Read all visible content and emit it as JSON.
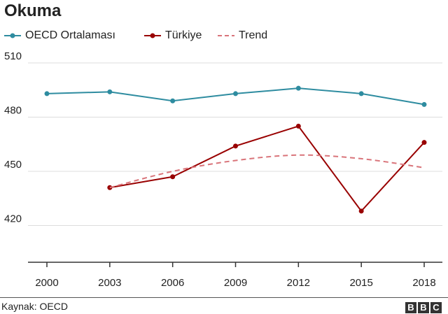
{
  "title": "Okuma",
  "legend": [
    {
      "label": "OECD Ortalaması",
      "color": "#2e8ca0",
      "style": "line-dot"
    },
    {
      "label": "Türkiye",
      "color": "#990000",
      "style": "line-dot"
    },
    {
      "label": "Trend",
      "color": "#d9747a",
      "style": "dashed"
    }
  ],
  "source": "Kaynak: OECD",
  "logo": [
    "B",
    "B",
    "C"
  ],
  "chart_data": {
    "type": "line",
    "x": [
      "2000",
      "2003",
      "2006",
      "2009",
      "2012",
      "2015",
      "2018"
    ],
    "ylim": [
      400,
      510
    ],
    "yticks": [
      420,
      450,
      480,
      510
    ],
    "grid": true,
    "legend_position": "top",
    "series": [
      {
        "name": "OECD Ortalaması",
        "color": "#2e8ca0",
        "values": [
          493,
          494,
          489,
          493,
          496,
          493,
          487
        ]
      },
      {
        "name": "Türkiye",
        "color": "#990000",
        "values": [
          null,
          441,
          447,
          464,
          475,
          428,
          466
        ]
      },
      {
        "name": "Trend",
        "color": "#d9747a",
        "dashed": true,
        "values": [
          null,
          441,
          450,
          456,
          459,
          457,
          452
        ]
      }
    ]
  }
}
